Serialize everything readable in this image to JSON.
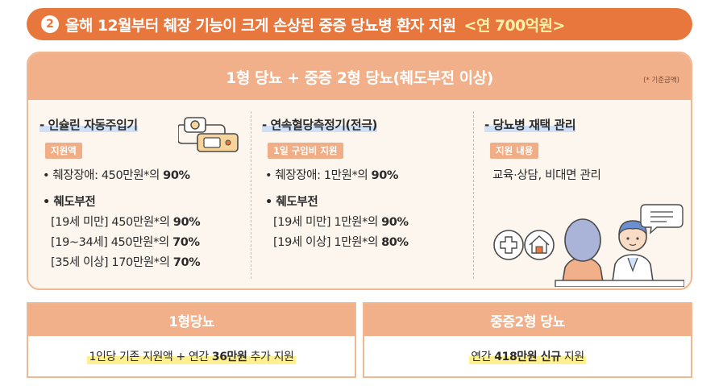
{
  "banner": {
    "number": "2",
    "title": "올해 12월부터 췌장 기능이 크게 손상된 중증 당뇨병 환자 지원",
    "amount": "<연 700억원>"
  },
  "panel": {
    "title": "1형 당뇨 + 중증 2형 당뇨(췌도부전 이상)",
    "note": "(* 기준금액)",
    "col1": {
      "title": "- 인슐린 자동주입기",
      "tag": "지원액",
      "line1_prefix": "• 췌장장애: 450만원*의 ",
      "line1_pct": "90%",
      "line2": "• 췌도부전",
      "sub1_prefix": "[19세 미만] 450만원*의 ",
      "sub1_pct": "90%",
      "sub2_prefix": "[19~34세] 450만원*의 ",
      "sub2_pct": "70%",
      "sub3_prefix": "[35세 이상] 170만원*의 ",
      "sub3_pct": "70%",
      "illustration": "insulin-pump-icon"
    },
    "col2": {
      "title": "- 연속혈당측정기(전극)",
      "tag": "1일 구입비 지원",
      "line1_prefix": "• 췌장장애: 1만원*의 ",
      "line1_pct": "90%",
      "line2": "• 췌도부전",
      "sub1_prefix": "[19세 미만] 1만원*의 ",
      "sub1_pct": "90%",
      "sub2_prefix": "[19세 이상] 1만원*의 ",
      "sub2_pct": "80%"
    },
    "col3": {
      "title": "- 당뇨병 재택 관리",
      "tag": "지원 내용",
      "content": "교육·상담, 비대면 관리",
      "illustration": "consultation-icon"
    }
  },
  "bottom": {
    "left": {
      "title": "1형당뇨",
      "text_prefix": "1인당 기존 지원액 + 연간 ",
      "text_bold": "36만원",
      "text_suffix": " 추가 지원"
    },
    "right": {
      "title": "중증2형 당뇨",
      "text_prefix": "연간 ",
      "text_bold": "418만원 신규",
      "text_suffix": " 지원"
    }
  },
  "colors": {
    "accent": "#e8773e",
    "header": "#f1b08a",
    "panel_bg": "#fdf6ee",
    "highlight_blue": "#cfe0f7",
    "highlight_yellow": "#fff08f"
  }
}
